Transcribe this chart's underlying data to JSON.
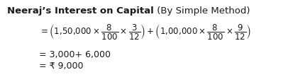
{
  "title_bold": "Neeraj’s Interest on Capital",
  "title_normal": " (By Simple Method)",
  "line2": "= 3,000+ 6,000",
  "line3": "= ₹ 9,000",
  "bg_color": "#ffffff",
  "text_color": "#1a1a1a",
  "font_size_title": 9.5,
  "font_size_body": 9.0,
  "font_size_math": 8.5
}
